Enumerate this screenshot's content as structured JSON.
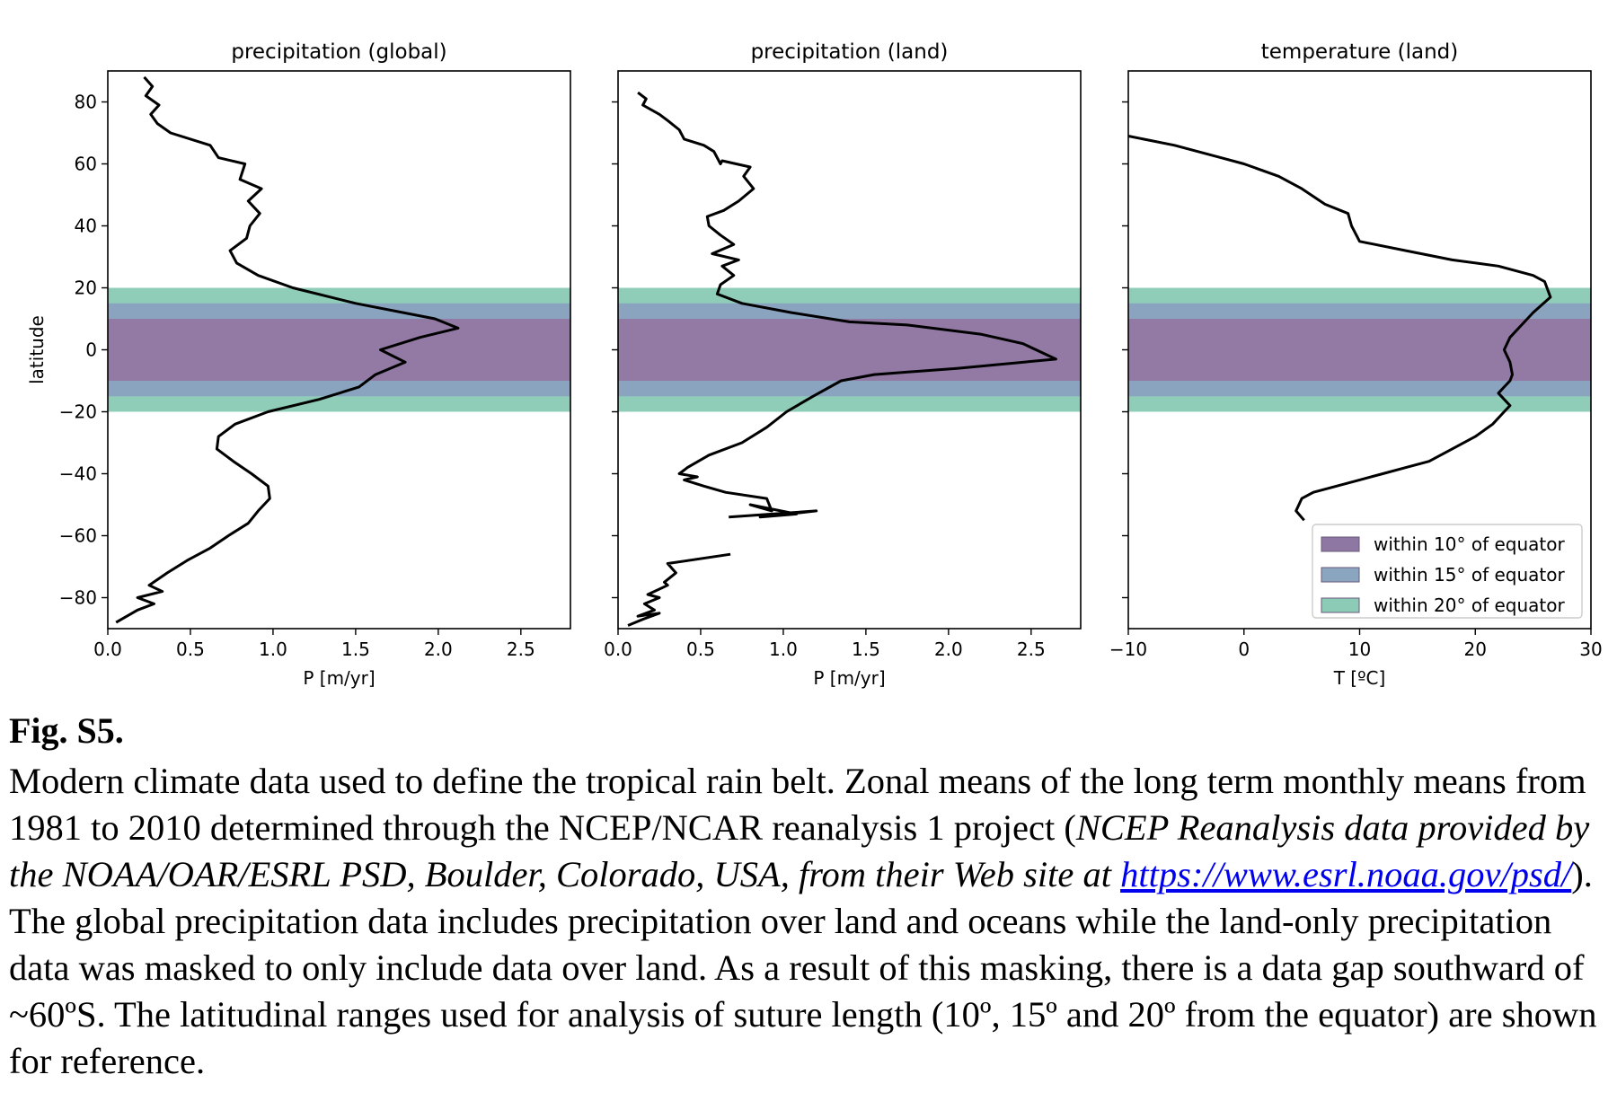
{
  "chart_data": [
    {
      "type": "line",
      "title": "precipitation (global)",
      "xlabel": "P [m/yr]",
      "ylabel": "latitude",
      "xlim": [
        0.0,
        2.8
      ],
      "ylim": [
        -90,
        90
      ],
      "xticks": [
        "0.0",
        "0.5",
        "1.0",
        "1.5",
        "2.0",
        "2.5"
      ],
      "yticks": [
        "80",
        "60",
        "40",
        "20",
        "0",
        "−20",
        "−40",
        "−60",
        "−80"
      ],
      "bands": [
        20,
        15,
        10
      ],
      "series": [
        {
          "x": [
            0.22,
            0.27,
            0.23,
            0.31,
            0.26,
            0.3,
            0.38,
            0.62,
            0.67,
            0.83,
            0.8,
            0.93,
            0.85,
            0.92,
            0.86,
            0.84,
            0.74,
            0.78,
            0.91,
            1.12,
            1.5,
            1.98,
            2.12,
            1.89,
            1.65,
            1.8,
            1.62,
            1.52,
            1.28,
            0.97,
            0.77,
            0.67,
            0.66,
            0.76,
            0.87,
            0.97,
            0.98,
            0.91,
            0.85,
            0.73,
            0.62,
            0.48,
            0.36,
            0.25,
            0.33,
            0.18,
            0.28,
            0.18,
            0.05
          ],
          "y": [
            88,
            85,
            82,
            79,
            76,
            73,
            70,
            66,
            62,
            60,
            55,
            52,
            48,
            44,
            40,
            36,
            32,
            28,
            24,
            20,
            15,
            10,
            7,
            4,
            0,
            -4,
            -8,
            -12,
            -16,
            -20,
            -24,
            -28,
            -32,
            -36,
            -40,
            -44,
            -48,
            -52,
            -56,
            -60,
            -64,
            -68,
            -72,
            -76,
            -78,
            -80,
            -82,
            -84,
            -88
          ]
        }
      ]
    },
    {
      "type": "line",
      "title": "precipitation (land)",
      "xlabel": "P [m/yr]",
      "ylabel": "",
      "xlim": [
        0.0,
        2.8
      ],
      "ylim": [
        -90,
        90
      ],
      "xticks": [
        "0.0",
        "0.5",
        "1.0",
        "1.5",
        "2.0",
        "2.5"
      ],
      "yticks": [],
      "bands": [
        20,
        15,
        10
      ],
      "series": [
        {
          "x": [
            0.12,
            0.17,
            0.15,
            0.25,
            0.3,
            0.37,
            0.4,
            0.52,
            0.58,
            0.62,
            0.63,
            0.8,
            0.76,
            0.82,
            0.73,
            0.64,
            0.54,
            0.55,
            0.62,
            0.7,
            0.57,
            0.73,
            0.63,
            0.7,
            0.62,
            0.6,
            0.75,
            1.05,
            1.4,
            1.75,
            2.2,
            2.45,
            2.65,
            2.05,
            1.55,
            1.35,
            1.18,
            1.02,
            0.9,
            0.75,
            0.55,
            0.42,
            0.37,
            0.48,
            0.4,
            0.52,
            0.65,
            0.9,
            0.93,
            0.8,
            1.08,
            0.86,
            1.2,
            0.67
          ],
          "y": [
            83,
            81,
            79,
            76,
            74,
            71,
            68,
            66,
            64,
            60,
            61,
            59,
            56,
            52,
            48,
            45,
            43,
            40,
            37,
            34,
            31,
            29,
            27,
            24,
            21,
            18,
            15,
            12,
            9,
            8,
            5,
            2,
            -3,
            -6,
            -8,
            -10,
            -15,
            -20,
            -25,
            -30,
            -34,
            -38,
            -40,
            -41,
            -42,
            -44,
            -46,
            -48,
            -52,
            -50,
            -53,
            -54,
            -52,
            -54
          ]
        },
        {
          "x": [
            0.68,
            0.3,
            0.35,
            0.28,
            0.3,
            0.18,
            0.25,
            0.16,
            0.22,
            0.12,
            0.25,
            0.15,
            0.06
          ],
          "y": [
            -66,
            -69,
            -72,
            -75,
            -76,
            -79,
            -80,
            -82,
            -84,
            -86,
            -85,
            -87,
            -89
          ]
        }
      ]
    },
    {
      "type": "line",
      "title": "temperature (land)",
      "xlabel": "T [ºC]",
      "ylabel": "",
      "xlim": [
        -10,
        30
      ],
      "ylim": [
        -90,
        90
      ],
      "xticks": [
        "−10",
        "0",
        "10",
        "20",
        "30"
      ],
      "yticks": [],
      "bands": [
        20,
        15,
        10
      ],
      "series": [
        {
          "x": [
            -10,
            -6,
            -2,
            0,
            3,
            5,
            7,
            9,
            9.3,
            10,
            14,
            18,
            22,
            25,
            26,
            26.5,
            25,
            24,
            23,
            22.5,
            23,
            23.2,
            23,
            22.5,
            22,
            22.5,
            23,
            22.5,
            21.5,
            20,
            18,
            16,
            14,
            12,
            10,
            8,
            6,
            5,
            4.5,
            5.2
          ],
          "y": [
            69,
            66,
            62,
            60,
            56,
            52,
            47,
            44,
            40,
            35,
            32,
            29,
            27,
            24,
            22,
            17,
            12,
            8,
            4,
            0,
            -4,
            -8,
            -10,
            -12,
            -14,
            -16,
            -18,
            -20,
            -24,
            -28,
            -32,
            -36,
            -38,
            -40,
            -42,
            -44,
            -46,
            -48,
            -52,
            -55
          ]
        }
      ],
      "legend": {
        "placement": "lower-right",
        "entries": [
          "within 10°  of equator",
          "within 15°  of equator",
          "within 20°  of equator"
        ],
        "colors": [
          "#8e78a3",
          "#8aa5c0",
          "#8cccb6"
        ]
      }
    }
  ],
  "band_colors": {
    "within_10": "#927aa4",
    "within_15": "#8aa3bf",
    "within_20": "#8fcdb8"
  },
  "caption": {
    "label": "Fig. S5.",
    "text_before_italic": "Modern climate data used to define the tropical rain belt. Zonal means of the long term monthly means from 1981 to 2010 determined through the NCEP/NCAR reanalysis 1 project (",
    "italic_text": "NCEP Reanalysis data provided by the NOAA/OAR/ESRL PSD, Boulder, Colorado, USA, from their Web site at ",
    "link_text": "https://www.esrl.noaa.gov/psd/",
    "text_after": "). The global precipitation data includes precipitation over land and oceans while the land-only precipitation data was masked to only include data over land. As a result of this masking, there is a data gap southward of ~60ºS. The latitudinal ranges used for analysis of suture length (10º, 15º and 20º from the equator) are shown for reference."
  }
}
